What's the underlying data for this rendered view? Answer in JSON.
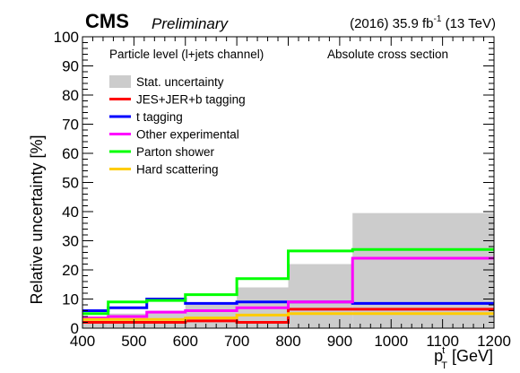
{
  "header": {
    "experiment": "CMS",
    "status": "Preliminary",
    "lumi_prefix": "(2016) 35.9 fb",
    "lumi_exp": "-1",
    "lumi_suffix": " (13 TeV)"
  },
  "annotations": {
    "left": "Particle level (l+jets channel)",
    "right": "Absolute cross section"
  },
  "chart_data": {
    "type": "line",
    "style": "step-histogram",
    "xlabel_main": "p",
    "xlabel_sup": "t",
    "xlabel_sub": "T",
    "xlabel_unit": " [GeV]",
    "ylabel": "Relative uncertainty [%]",
    "xlim": [
      400,
      1200
    ],
    "ylim": [
      0,
      100
    ],
    "x_ticks": [
      400,
      500,
      600,
      700,
      800,
      900,
      1000,
      1100,
      1200
    ],
    "y_ticks": [
      0,
      10,
      20,
      30,
      40,
      50,
      60,
      70,
      80,
      90,
      100
    ],
    "bin_edges": [
      400,
      450,
      525,
      600,
      700,
      800,
      925,
      1200
    ],
    "grid": false,
    "legend_position": "top-left",
    "band": {
      "name": "Stat. uncertainty",
      "color": "#cccccc",
      "values": [
        4,
        5,
        6,
        8,
        14,
        22,
        39.5
      ]
    },
    "series": [
      {
        "name": "JES+JER+b tagging",
        "color": "#ff0000",
        "values": [
          2,
          2,
          2,
          2.5,
          2,
          6.5,
          6.5
        ]
      },
      {
        "name": "t tagging",
        "color": "#0000ff",
        "values": [
          6,
          7,
          10,
          8.5,
          9,
          9,
          8.5
        ]
      },
      {
        "name": "Other experimental",
        "color": "#ff00ff",
        "values": [
          3.5,
          4,
          5.5,
          6,
          7,
          9,
          24
        ]
      },
      {
        "name": "Parton shower",
        "color": "#00ff00",
        "values": [
          5,
          9,
          9.5,
          11.5,
          17,
          26.5,
          27
        ]
      },
      {
        "name": "Hard scattering",
        "color": "#ffcc00",
        "values": [
          3,
          3,
          3,
          3.5,
          4.5,
          5,
          5
        ]
      }
    ]
  }
}
